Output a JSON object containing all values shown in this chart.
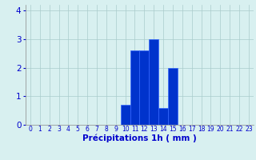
{
  "hours": [
    0,
    1,
    2,
    3,
    4,
    5,
    6,
    7,
    8,
    9,
    10,
    11,
    12,
    13,
    14,
    15,
    16,
    17,
    18,
    19,
    20,
    21,
    22,
    23
  ],
  "values": [
    0,
    0,
    0,
    0,
    0,
    0,
    0,
    0,
    0,
    0,
    0.7,
    2.6,
    2.6,
    3.0,
    0.6,
    2.0,
    0,
    0,
    0,
    0,
    0,
    0,
    0,
    0
  ],
  "bar_color": "#0033cc",
  "bar_edge_color": "#3366ff",
  "background_color": "#d8f0f0",
  "grid_color": "#aacccc",
  "xlabel": "Précipitations 1h ( mm )",
  "xlabel_color": "#0000cc",
  "tick_color": "#0000cc",
  "axis_color": "#888888",
  "ylim": [
    0,
    4.2
  ],
  "yticks": [
    0,
    1,
    2,
    3,
    4
  ],
  "xlim": [
    -0.5,
    23.5
  ],
  "tick_fontsize": 5.5,
  "ylabel_fontsize": 7.5,
  "xlabel_fontsize": 7.5
}
